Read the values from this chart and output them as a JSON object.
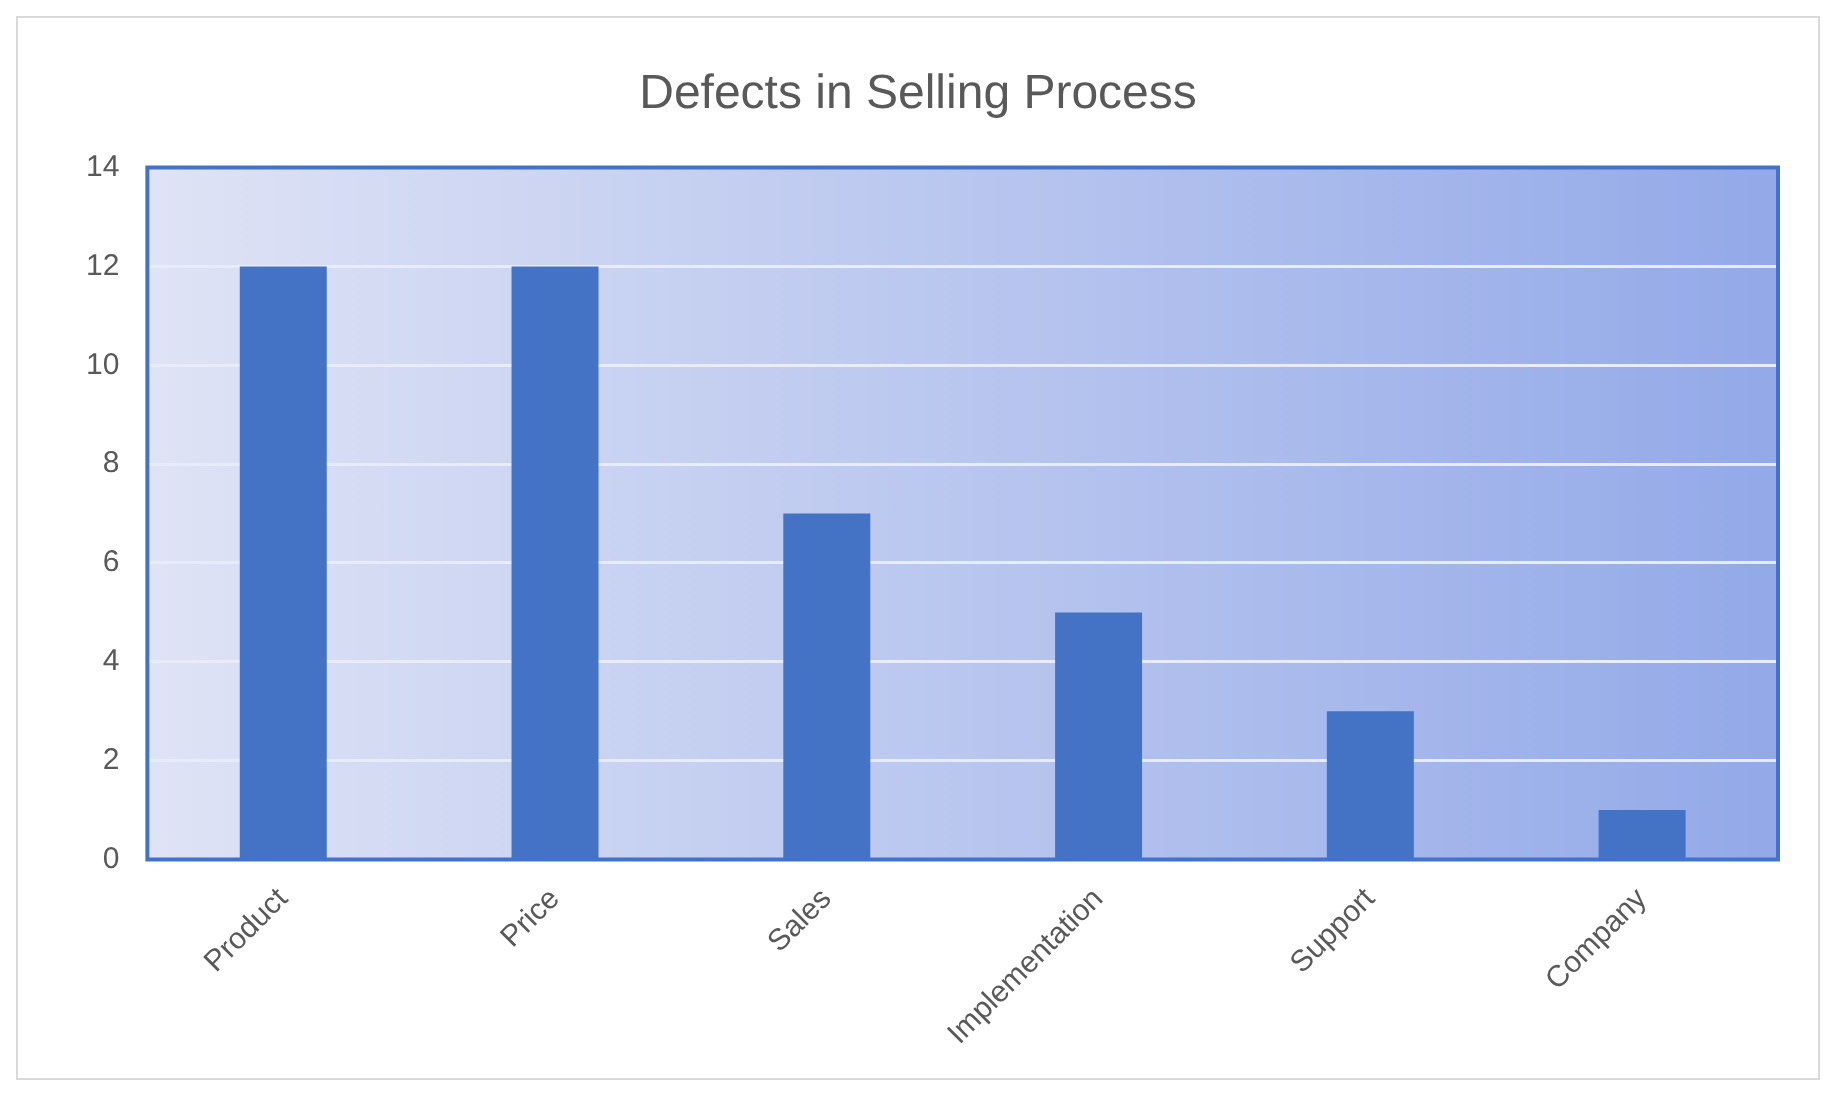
{
  "chart_data": {
    "type": "bar",
    "title": "Defects in Selling Process",
    "categories": [
      "Product",
      "Price",
      "Sales",
      "Implementation",
      "Support",
      "Company"
    ],
    "values": [
      12,
      12,
      7,
      5,
      3,
      1
    ],
    "color": "#4472c4",
    "ylim": [
      0,
      14
    ],
    "yticks": [
      0,
      2,
      4,
      6,
      8,
      10,
      12,
      14
    ],
    "grid": "y"
  }
}
